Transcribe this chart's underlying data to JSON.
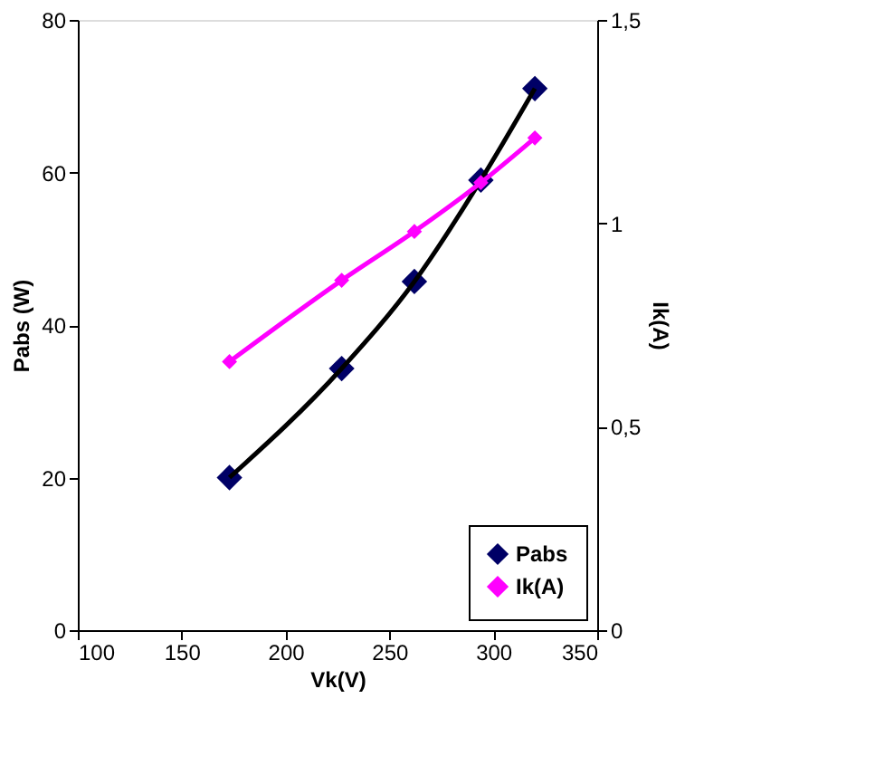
{
  "chart_data": {
    "type": "line",
    "xlabel": "Vk(V)",
    "ylabel": "Pabs (W)",
    "y2label": "Ik(A)",
    "x": [
      173,
      227,
      262,
      294,
      320
    ],
    "xlim": [
      100,
      350
    ],
    "xticks": [
      100,
      150,
      200,
      250,
      300,
      350
    ],
    "ylim": [
      0,
      80
    ],
    "yticks": [
      0,
      20,
      40,
      60,
      80
    ],
    "y2lim": [
      0,
      1.5
    ],
    "y2ticks": [
      {
        "value": 0,
        "label": "0"
      },
      {
        "value": 0.5,
        "label": "0,5"
      },
      {
        "value": 1,
        "label": "1"
      },
      {
        "value": 1.5,
        "label": "1,5"
      }
    ],
    "series": [
      {
        "name": "Pabs",
        "type": "scatter",
        "color": "#000066",
        "marker": "diamond",
        "values": [
          20,
          34.3,
          45.7,
          59,
          71
        ]
      },
      {
        "name": "Ik(A)",
        "axis": "y2",
        "color": "#ff00ff",
        "marker": "diamond",
        "values": [
          0.66,
          0.86,
          0.98,
          1.1,
          1.21
        ]
      },
      {
        "color": "#000000",
        "marker": "none",
        "values": [
          20,
          34.3,
          45.7,
          59,
          71
        ]
      }
    ],
    "legend": "bottom right",
    "grid": false
  }
}
